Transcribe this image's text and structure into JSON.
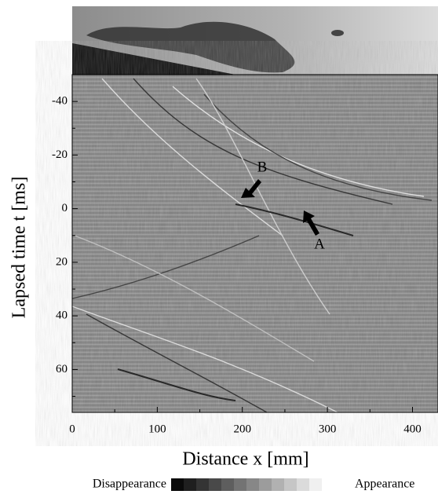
{
  "chart_data": {
    "type": "image",
    "x_label": "Distance x [mm]",
    "y_label": "Lapsed time t [ms]",
    "xlim": [
      0,
      430
    ],
    "xticks": [
      0,
      100,
      200,
      300,
      400
    ],
    "xminorticks": [
      50,
      150,
      250,
      350
    ],
    "ylim": [
      -50,
      76
    ],
    "yticks": [
      -40,
      -20,
      0,
      20,
      40,
      60
    ],
    "yminorticks": [
      -30,
      -10,
      10,
      30,
      50,
      70
    ],
    "annotations": [
      "A",
      "B"
    ],
    "colorbar": {
      "low_label": "Disappearance",
      "high_label": "Appearance"
    }
  }
}
